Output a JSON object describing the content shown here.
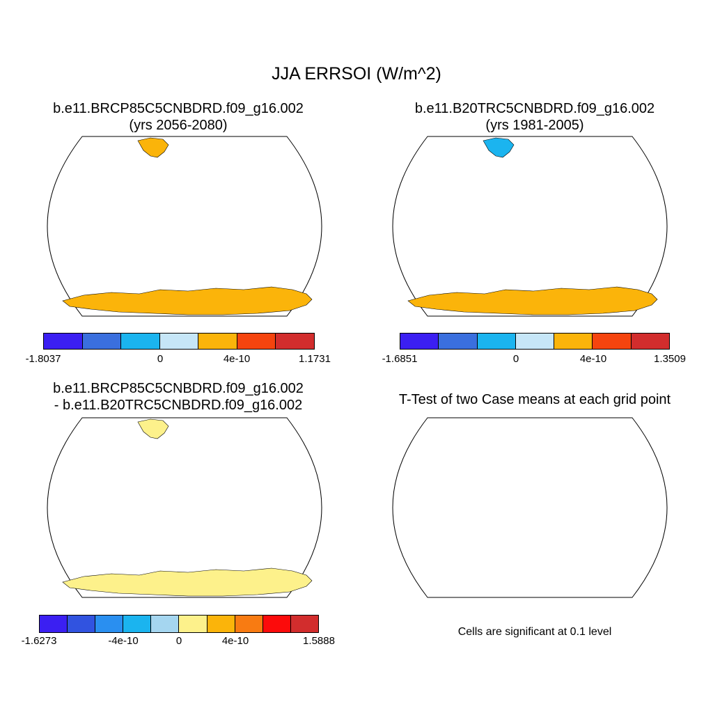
{
  "title": "JJA ERRSOI (W/m^2)",
  "panels": [
    {
      "title_line1": "b.e11.BRCP85C5CNBDRD.f09_g16.002",
      "title_line2": "(yrs 2056-2080)",
      "colorbar": {
        "colors": [
          "#3b1ff2",
          "#3a6fde",
          "#1bb4ef",
          "#c6e6f7",
          "#fbb40a",
          "#f5440e",
          "#d22d2d"
        ],
        "labels": [
          "-1.8037",
          "0",
          "4e-10",
          "1.1731"
        ]
      }
    },
    {
      "title_line1": "b.e11.B20TRC5CNBDRD.f09_g16.002",
      "title_line2": "(yrs 1981-2005)",
      "colorbar": {
        "colors": [
          "#3b1ff2",
          "#3a6fde",
          "#1bb4ef",
          "#c6e6f7",
          "#fbb40a",
          "#f5440e",
          "#d22d2d"
        ],
        "labels": [
          "-1.6851",
          "0",
          "4e-10",
          "1.3509"
        ]
      }
    },
    {
      "title_line1": "b.e11.BRCP85C5CNBDRD.f09_g16.002",
      "title_line2": "- b.e11.B20TRC5CNBDRD.f09_g16.002",
      "colorbar": {
        "colors": [
          "#3b1ff2",
          "#3153e0",
          "#2a8ff0",
          "#1bb4ef",
          "#a5d6f0",
          "#fdf18b",
          "#fbb40a",
          "#f87b12",
          "#fc0b0b",
          "#d22d2d"
        ],
        "labels": [
          "-1.6273",
          "-4e-10",
          "0",
          "4e-10",
          "1.5888"
        ]
      }
    },
    {
      "title_line1": "T-Test of two Case means at each grid point",
      "note": "Cells are significant at 0.1 level"
    }
  ]
}
